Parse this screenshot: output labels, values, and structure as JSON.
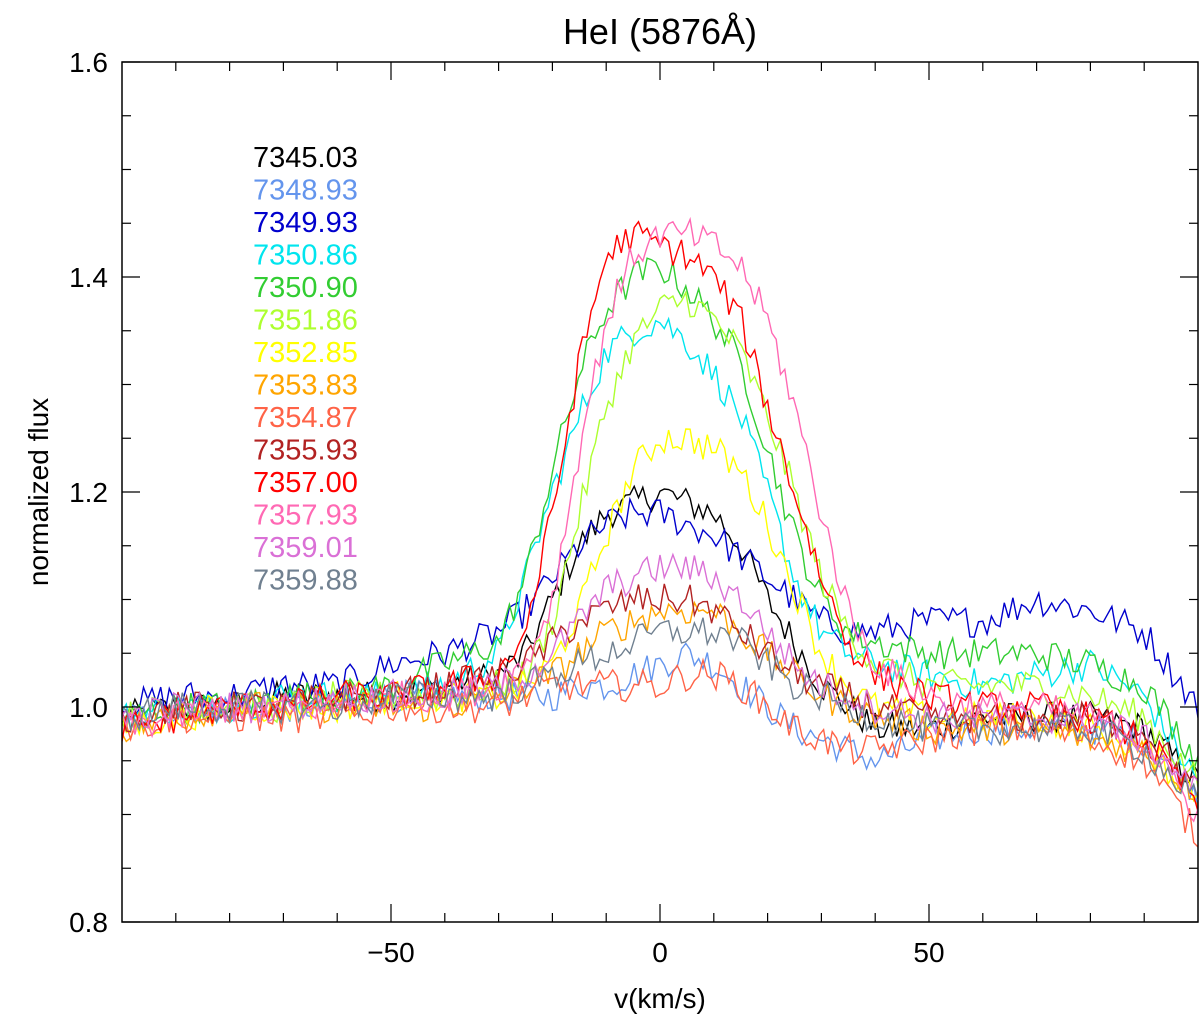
{
  "chart_data": {
    "type": "line",
    "title": "HeI (5876Å)",
    "xlabel": "v(km/s)",
    "ylabel": "normalized flux",
    "xlim": [
      -100,
      100
    ],
    "ylim": [
      0.8,
      1.6
    ],
    "x_ticks": [
      -50,
      0,
      50
    ],
    "x_tick_labels": [
      "−50",
      "0",
      "50"
    ],
    "y_ticks": [
      0.8,
      1.0,
      1.2,
      1.4,
      1.6
    ],
    "y_tick_labels": [
      "0.8",
      "1.0",
      "1.2",
      "1.4",
      "1.6"
    ],
    "grid": false,
    "legend_position": "top-left",
    "x": [
      -100,
      -90,
      -80,
      -70,
      -60,
      -50,
      -40,
      -30,
      -25,
      -20,
      -15,
      -10,
      -5,
      0,
      5,
      10,
      15,
      20,
      25,
      30,
      35,
      40,
      50,
      60,
      70,
      80,
      90,
      100
    ],
    "series": [
      {
        "name": "7345.03",
        "color": "#000000",
        "values": [
          0.99,
          1.0,
          1.0,
          1.01,
          1.01,
          1.01,
          1.02,
          1.03,
          1.05,
          1.1,
          1.15,
          1.18,
          1.19,
          1.2,
          1.19,
          1.18,
          1.15,
          1.1,
          1.06,
          1.02,
          1.0,
          0.98,
          0.98,
          0.99,
          0.99,
          0.99,
          0.98,
          0.93
        ]
      },
      {
        "name": "7348.93",
        "color": "#6495ED",
        "values": [
          0.99,
          1.0,
          1.0,
          1.0,
          1.0,
          1.01,
          1.01,
          1.01,
          1.01,
          1.01,
          1.02,
          1.02,
          1.03,
          1.04,
          1.05,
          1.04,
          1.02,
          1.0,
          0.98,
          0.97,
          0.96,
          0.95,
          0.97,
          0.98,
          0.98,
          0.98,
          0.97,
          0.92
        ]
      },
      {
        "name": "7349.93",
        "color": "#0000CD",
        "values": [
          1.0,
          1.01,
          1.01,
          1.02,
          1.02,
          1.04,
          1.05,
          1.07,
          1.09,
          1.12,
          1.15,
          1.17,
          1.18,
          1.18,
          1.17,
          1.16,
          1.14,
          1.12,
          1.1,
          1.08,
          1.07,
          1.07,
          1.08,
          1.08,
          1.1,
          1.09,
          1.07,
          1.0
        ]
      },
      {
        "name": "7350.86",
        "color": "#00E5EE",
        "values": [
          0.99,
          1.0,
          1.0,
          1.01,
          1.01,
          1.01,
          1.02,
          1.05,
          1.12,
          1.2,
          1.27,
          1.33,
          1.35,
          1.36,
          1.34,
          1.31,
          1.27,
          1.2,
          1.12,
          1.07,
          1.05,
          1.04,
          1.03,
          1.02,
          1.03,
          1.04,
          1.01,
          0.93
        ]
      },
      {
        "name": "7350.90",
        "color": "#32CD32",
        "values": [
          0.99,
          1.0,
          1.0,
          1.01,
          1.01,
          1.02,
          1.04,
          1.06,
          1.12,
          1.22,
          1.31,
          1.37,
          1.4,
          1.41,
          1.39,
          1.36,
          1.32,
          1.24,
          1.16,
          1.1,
          1.07,
          1.06,
          1.05,
          1.05,
          1.05,
          1.04,
          1.02,
          0.95
        ]
      },
      {
        "name": "7351.86",
        "color": "#ADFF2F",
        "values": [
          0.99,
          1.0,
          1.0,
          1.0,
          1.01,
          1.01,
          1.01,
          1.02,
          1.03,
          1.08,
          1.18,
          1.28,
          1.34,
          1.37,
          1.38,
          1.36,
          1.33,
          1.27,
          1.2,
          1.12,
          1.07,
          1.04,
          1.02,
          1.02,
          1.02,
          1.01,
          0.99,
          0.93
        ]
      },
      {
        "name": "7352.85",
        "color": "#FFFF00",
        "values": [
          0.98,
          0.99,
          1.0,
          1.0,
          1.0,
          1.01,
          1.01,
          1.01,
          1.02,
          1.04,
          1.09,
          1.16,
          1.22,
          1.25,
          1.25,
          1.24,
          1.22,
          1.17,
          1.11,
          1.05,
          1.02,
          1.0,
          0.99,
          0.99,
          0.99,
          0.98,
          0.96,
          0.92
        ]
      },
      {
        "name": "7353.83",
        "color": "#FFA500",
        "values": [
          0.98,
          0.99,
          1.0,
          1.0,
          1.0,
          1.0,
          1.0,
          1.01,
          1.02,
          1.03,
          1.05,
          1.07,
          1.08,
          1.09,
          1.09,
          1.09,
          1.07,
          1.05,
          1.03,
          1.01,
          1.0,
          0.99,
          0.98,
          0.98,
          0.98,
          0.97,
          0.96,
          0.92
        ]
      },
      {
        "name": "7354.87",
        "color": "#FF6347",
        "values": [
          0.98,
          0.99,
          0.99,
          0.99,
          0.99,
          1.0,
          1.0,
          1.0,
          1.01,
          1.02,
          1.02,
          1.02,
          1.02,
          1.02,
          1.03,
          1.03,
          1.02,
          1.0,
          0.98,
          0.97,
          0.96,
          0.96,
          0.97,
          0.98,
          0.98,
          0.97,
          0.95,
          0.88
        ]
      },
      {
        "name": "7355.93",
        "color": "#B22222",
        "values": [
          0.99,
          1.0,
          1.0,
          1.0,
          1.01,
          1.01,
          1.02,
          1.03,
          1.04,
          1.06,
          1.08,
          1.09,
          1.1,
          1.1,
          1.1,
          1.09,
          1.07,
          1.05,
          1.03,
          1.02,
          1.01,
          1.0,
          0.99,
          0.99,
          0.99,
          0.99,
          0.98,
          0.92
        ]
      },
      {
        "name": "7357.00",
        "color": "#FF0000",
        "values": [
          0.98,
          0.99,
          1.0,
          1.0,
          1.01,
          1.01,
          1.02,
          1.03,
          1.07,
          1.18,
          1.32,
          1.42,
          1.44,
          1.43,
          1.42,
          1.4,
          1.36,
          1.28,
          1.2,
          1.12,
          1.06,
          1.03,
          1.01,
          1.0,
          1.0,
          0.99,
          0.97,
          0.91
        ]
      },
      {
        "name": "7357.93",
        "color": "#FF69B4",
        "values": [
          0.98,
          0.99,
          1.0,
          1.0,
          1.0,
          1.01,
          1.01,
          1.02,
          1.04,
          1.1,
          1.24,
          1.36,
          1.42,
          1.44,
          1.44,
          1.43,
          1.41,
          1.36,
          1.28,
          1.18,
          1.09,
          1.04,
          1.01,
          1.0,
          1.0,
          0.99,
          0.97,
          0.9
        ]
      },
      {
        "name": "7359.01",
        "color": "#DA70D6",
        "values": [
          0.99,
          1.0,
          1.0,
          1.0,
          1.01,
          1.01,
          1.01,
          1.02,
          1.03,
          1.05,
          1.08,
          1.11,
          1.12,
          1.13,
          1.13,
          1.12,
          1.1,
          1.07,
          1.04,
          1.02,
          1.01,
          1.0,
          0.99,
          0.99,
          0.99,
          0.99,
          0.97,
          0.92
        ]
      },
      {
        "name": "7359.88",
        "color": "#708090",
        "values": [
          0.99,
          1.0,
          1.0,
          1.0,
          1.0,
          1.01,
          1.01,
          1.01,
          1.02,
          1.03,
          1.04,
          1.05,
          1.06,
          1.07,
          1.07,
          1.07,
          1.06,
          1.04,
          1.02,
          1.01,
          1.0,
          0.99,
          0.98,
          0.98,
          0.98,
          0.98,
          0.96,
          0.91
        ]
      }
    ]
  }
}
